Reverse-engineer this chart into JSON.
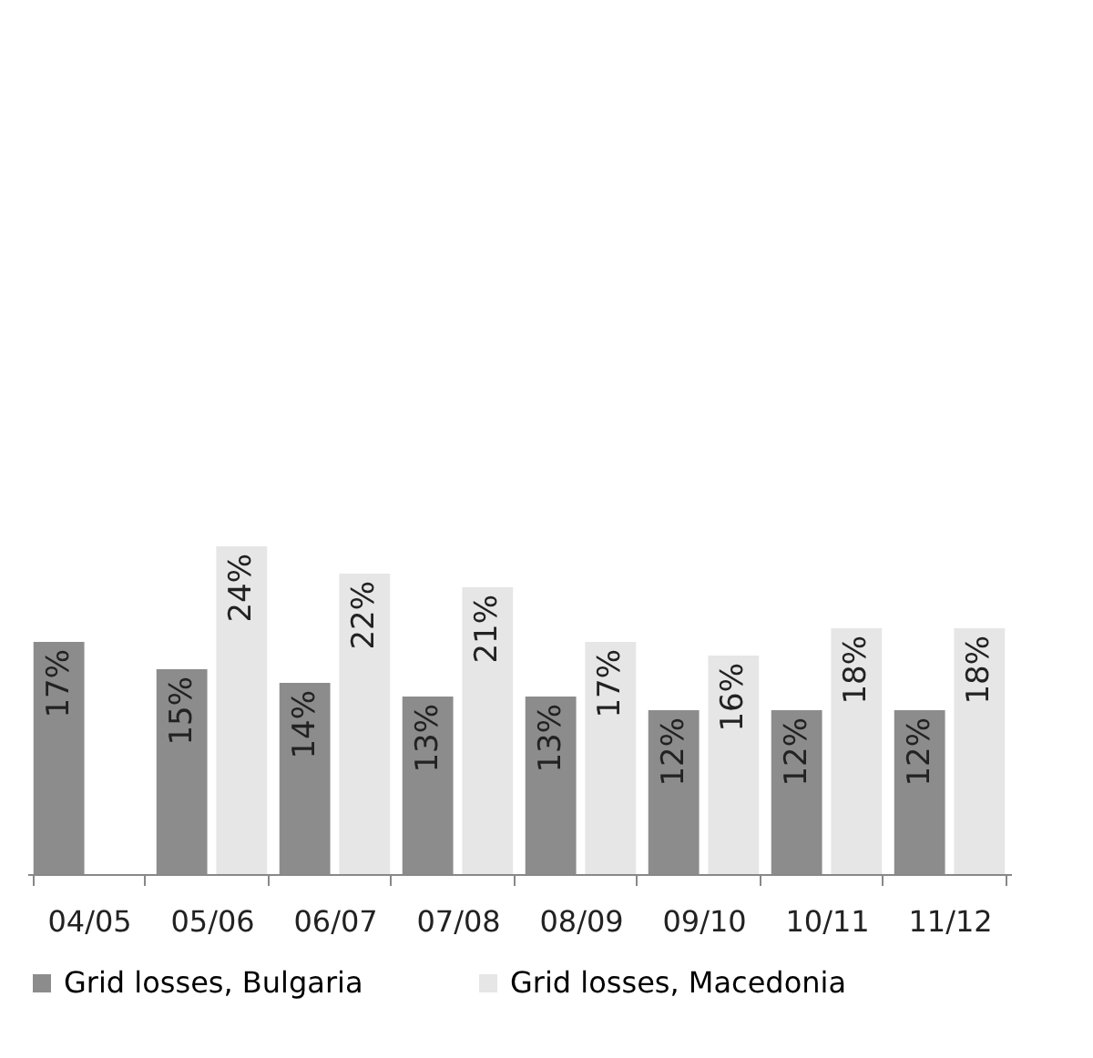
{
  "chart_data": {
    "type": "bar",
    "categories": [
      "04/05",
      "05/06",
      "06/07",
      "07/08",
      "08/09",
      "09/10",
      "10/11",
      "11/12"
    ],
    "series": [
      {
        "name": "Grid losses, Bulgaria",
        "color": "#8c8c8c",
        "values": [
          17,
          15,
          14,
          13,
          13,
          12,
          12,
          12
        ],
        "value_labels": [
          "17%",
          "15%",
          "14%",
          "13%",
          "13%",
          "12%",
          "12%",
          "12%"
        ]
      },
      {
        "name": "Grid losses, Macedonia",
        "color": "#e6e6e6",
        "values": [
          null,
          24,
          22,
          21,
          17,
          16,
          18,
          18
        ],
        "value_labels": [
          null,
          "24%",
          "22%",
          "21%",
          "17%",
          "16%",
          "18%",
          "18%"
        ]
      }
    ],
    "legend": "bottom",
    "grid": false
  }
}
